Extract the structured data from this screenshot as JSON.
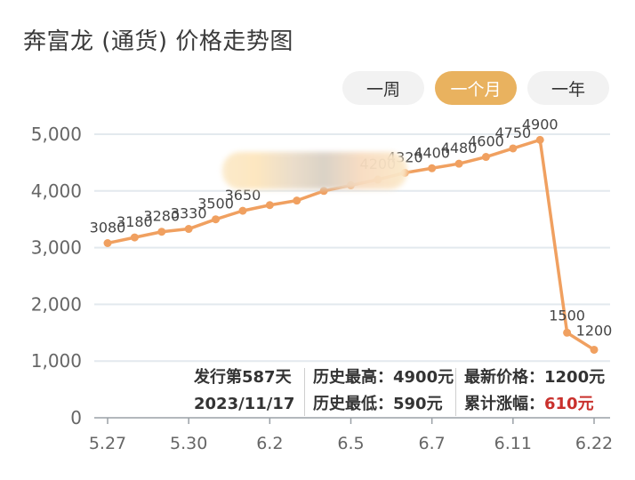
{
  "title": "奔富龙 (通货) 价格走势图",
  "tabs": [
    {
      "label": "一周",
      "active": false
    },
    {
      "label": "一个月",
      "active": true
    },
    {
      "label": "一年",
      "active": false
    }
  ],
  "colors": {
    "line": "#f0a060",
    "accent": "#e9b25f",
    "red": "#c9302c",
    "grid": "#e3e9ee"
  },
  "stats": {
    "issue_label": "发行第587天",
    "date": "2023/11/17",
    "hist_high_label": "历史最高：",
    "hist_high_value": "4900元",
    "hist_low_label": "历史最低：",
    "hist_low_value": "590元",
    "latest_label": "最新价格：",
    "latest_value": "1200元",
    "cum_label": "累计涨幅：",
    "cum_value": "610元"
  },
  "chart_data": {
    "type": "line",
    "title": "",
    "xlabel": "",
    "ylabel": "",
    "ylim": [
      0,
      5000
    ],
    "yticks": [
      "0",
      "1,000",
      "2,000",
      "3,000",
      "4,000",
      "5,000"
    ],
    "xticks": [
      "5.27",
      "5.30",
      "6.2",
      "6.5",
      "6.7",
      "6.11",
      "6.22"
    ],
    "series": [
      {
        "values": [
          3080,
          3180,
          3280,
          3330,
          3500,
          3650,
          3750,
          3830,
          4000,
          4100,
          4200,
          4320,
          4400,
          4480,
          4600,
          4750,
          4900,
          1500,
          1200
        ],
        "labels": [
          "3080",
          "3180",
          "3280",
          "3330",
          "3500",
          "3650",
          "",
          "",
          "",
          "",
          "4200",
          "4320",
          "4400",
          "4480",
          "4600",
          "4750",
          "4900",
          "1500",
          "1200"
        ]
      }
    ],
    "grid": true
  }
}
